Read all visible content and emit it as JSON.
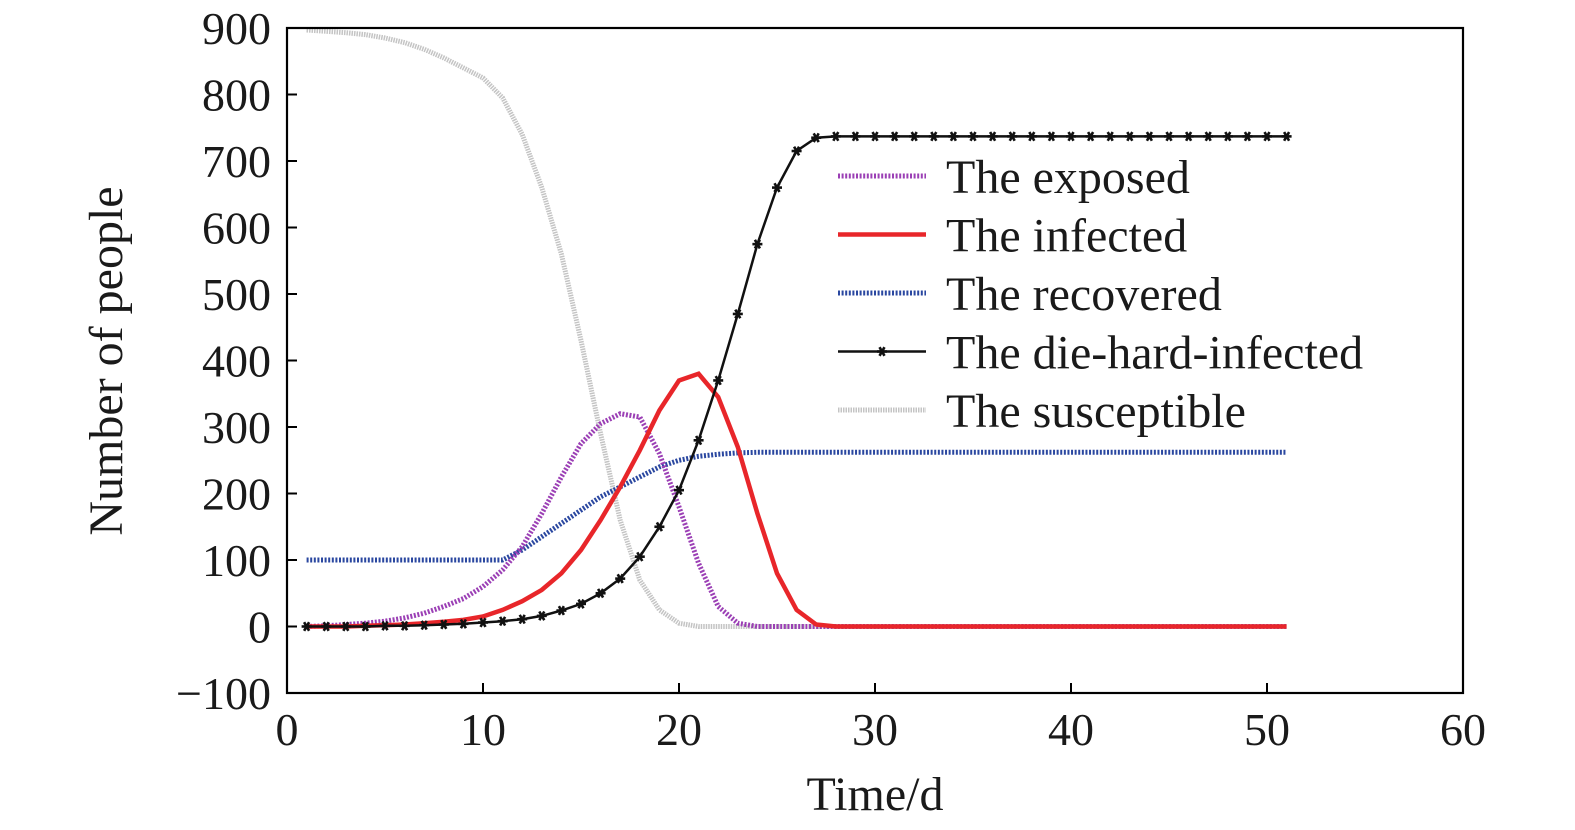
{
  "chart_data": {
    "type": "line",
    "title": "",
    "xlabel": "Time/d",
    "ylabel": "Number of people",
    "xlim": [
      0,
      60
    ],
    "ylim": [
      -100,
      900
    ],
    "xticks": [
      0,
      10,
      20,
      30,
      40,
      50,
      60
    ],
    "xtick_labels": [
      "0",
      "10",
      "20",
      "30",
      "40",
      "50",
      "60"
    ],
    "yticks": [
      -100,
      0,
      100,
      200,
      300,
      400,
      500,
      600,
      700,
      800,
      900
    ],
    "ytick_labels": [
      "−100",
      "0",
      "100",
      "200",
      "300",
      "400",
      "500",
      "600",
      "700",
      "800",
      "900"
    ],
    "grid": false,
    "legend_position": "top-right",
    "x": [
      1,
      2,
      3,
      4,
      5,
      6,
      7,
      8,
      9,
      10,
      11,
      12,
      13,
      14,
      15,
      16,
      17,
      18,
      19,
      20,
      21,
      22,
      23,
      24,
      25,
      26,
      27,
      28,
      29,
      30,
      31,
      32,
      33,
      34,
      35,
      36,
      37,
      38,
      39,
      40,
      41,
      42,
      43,
      44,
      45,
      46,
      47,
      48,
      49,
      50,
      51
    ],
    "series": [
      {
        "name": "The exposed",
        "color": "#9b3fb5",
        "style": "dotted",
        "values": [
          0,
          1,
          3,
          5,
          8,
          13,
          20,
          30,
          42,
          60,
          85,
          120,
          170,
          225,
          275,
          305,
          320,
          315,
          260,
          180,
          95,
          30,
          5,
          0,
          0,
          0,
          0,
          0,
          0,
          0,
          0,
          0,
          0,
          0,
          0,
          0,
          0,
          0,
          0,
          0,
          0,
          0,
          0,
          0,
          0,
          0,
          0,
          0,
          0,
          0,
          0
        ]
      },
      {
        "name": "The infected",
        "color": "#e8262a",
        "style": "solid",
        "values": [
          0,
          0,
          0,
          1,
          2,
          3,
          5,
          7,
          10,
          15,
          25,
          38,
          55,
          80,
          115,
          160,
          210,
          265,
          325,
          370,
          380,
          345,
          270,
          170,
          80,
          25,
          3,
          0,
          0,
          0,
          0,
          0,
          0,
          0,
          0,
          0,
          0,
          0,
          0,
          0,
          0,
          0,
          0,
          0,
          0,
          0,
          0,
          0,
          0,
          0,
          0
        ]
      },
      {
        "name": "The recovered",
        "color": "#2a47a0",
        "style": "dotted",
        "values": [
          100,
          100,
          100,
          100,
          100,
          100,
          100,
          100,
          100,
          100,
          100,
          115,
          135,
          155,
          175,
          195,
          210,
          225,
          240,
          250,
          256,
          259,
          261,
          262,
          262,
          262,
          262,
          262,
          262,
          262,
          262,
          262,
          262,
          262,
          262,
          262,
          262,
          262,
          262,
          262,
          262,
          262,
          262,
          262,
          262,
          262,
          262,
          262,
          262,
          262,
          262
        ]
      },
      {
        "name": "The die-hard-infected",
        "color": "#111111",
        "style": "solid-star",
        "values": [
          0,
          0,
          0,
          0,
          1,
          1,
          2,
          3,
          4,
          6,
          8,
          11,
          16,
          24,
          34,
          50,
          72,
          105,
          150,
          205,
          280,
          370,
          470,
          575,
          660,
          715,
          735,
          737,
          737,
          737,
          737,
          737,
          737,
          737,
          737,
          737,
          737,
          737,
          737,
          737,
          737,
          737,
          737,
          737,
          737,
          737,
          737,
          737,
          737,
          737,
          737
        ]
      },
      {
        "name": "The susceptible",
        "color": "#c4c4c4",
        "style": "hatched",
        "values": [
          897,
          895,
          893,
          890,
          885,
          878,
          868,
          855,
          840,
          825,
          795,
          740,
          660,
          560,
          430,
          290,
          160,
          70,
          25,
          5,
          0,
          0,
          0,
          0,
          0,
          0,
          0,
          0,
          0,
          0,
          0,
          0,
          0,
          0,
          0,
          0,
          0,
          0,
          0,
          0,
          0,
          0,
          0,
          0,
          0,
          0,
          0,
          0,
          0,
          0,
          0
        ]
      }
    ]
  }
}
